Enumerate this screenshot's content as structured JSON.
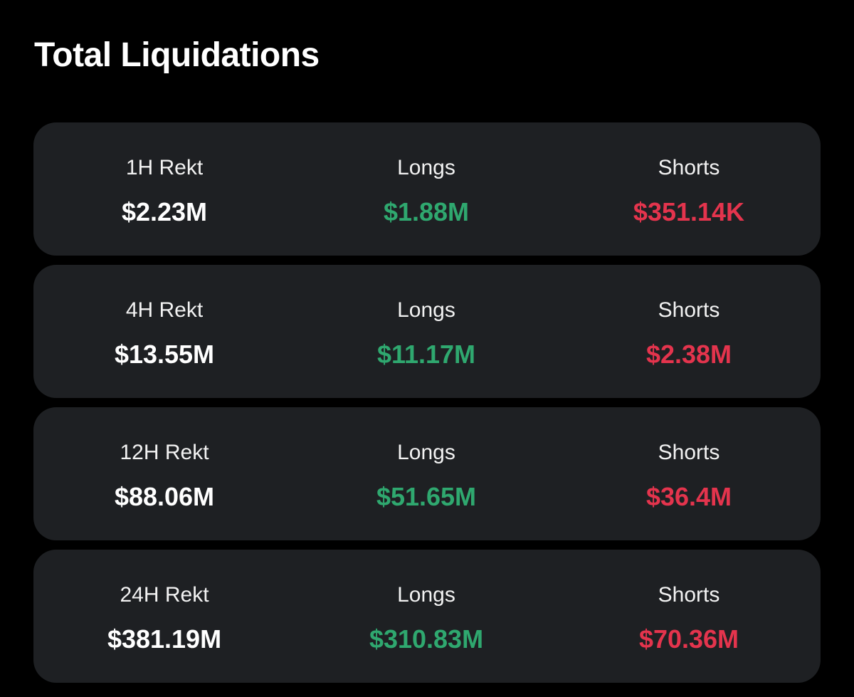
{
  "header": {
    "title": "Total Liquidations"
  },
  "colors": {
    "background": "#000000",
    "card": "#1e2023",
    "long": "#2fa86f",
    "short": "#e4344d",
    "total": "#ffffff"
  },
  "cards": [
    {
      "period_label": "1H Rekt",
      "total": "$2.23M",
      "longs_label": "Longs",
      "longs": "$1.88M",
      "shorts_label": "Shorts",
      "shorts": "$351.14K"
    },
    {
      "period_label": "4H Rekt",
      "total": "$13.55M",
      "longs_label": "Longs",
      "longs": "$11.17M",
      "shorts_label": "Shorts",
      "shorts": "$2.38M"
    },
    {
      "period_label": "12H Rekt",
      "total": "$88.06M",
      "longs_label": "Longs",
      "longs": "$51.65M",
      "shorts_label": "Shorts",
      "shorts": "$36.4M"
    },
    {
      "period_label": "24H Rekt",
      "total": "$381.19M",
      "longs_label": "Longs",
      "longs": "$310.83M",
      "shorts_label": "Shorts",
      "shorts": "$70.36M"
    }
  ]
}
